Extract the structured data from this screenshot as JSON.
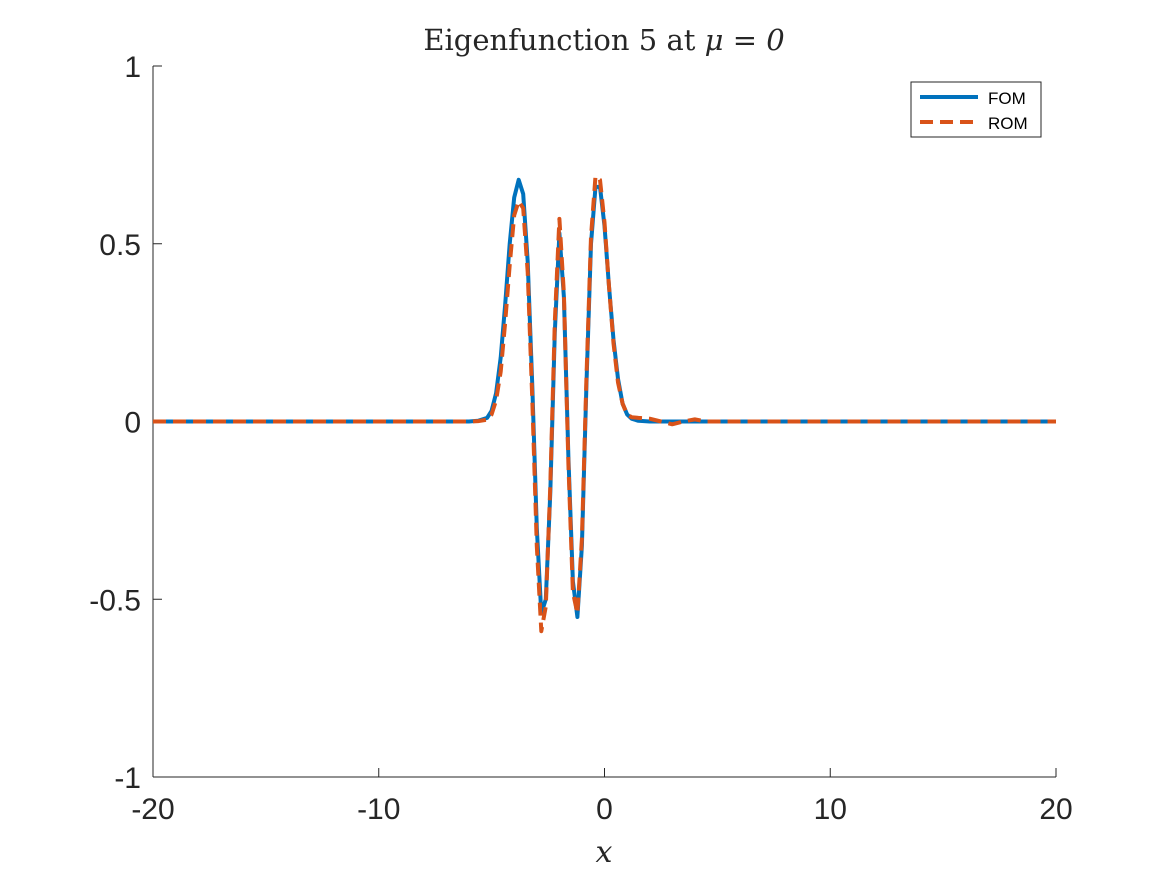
{
  "chart_data": {
    "type": "line",
    "title": "Eigenfunction 5 at μ = 0",
    "title_prefix": "Eigenfunction 5 at ",
    "title_math": "μ = 0",
    "xlabel": "x",
    "ylabel": "",
    "xlim": [
      -20,
      20
    ],
    "ylim": [
      -1,
      1
    ],
    "xticks": [
      -20,
      -10,
      0,
      10,
      20
    ],
    "xtick_labels": [
      "-20",
      "-10",
      "0",
      "10",
      "20"
    ],
    "yticks": [
      -1,
      -0.5,
      0,
      0.5,
      1
    ],
    "ytick_labels": [
      "-1",
      "-0.5",
      "0",
      "0.5",
      "1"
    ],
    "grid": false,
    "legend_position": "top-right",
    "series": [
      {
        "name": "FOM",
        "color": "#0072BD",
        "style": "solid",
        "x": [
          -20,
          -10,
          -6,
          -5.6,
          -5.2,
          -5.0,
          -4.8,
          -4.6,
          -4.4,
          -4.2,
          -4.0,
          -3.8,
          -3.6,
          -3.4,
          -3.2,
          -3.0,
          -2.8,
          -2.6,
          -2.4,
          -2.2,
          -2.0,
          -1.8,
          -1.6,
          -1.4,
          -1.2,
          -1.0,
          -0.8,
          -0.6,
          -0.4,
          -0.2,
          0.0,
          0.2,
          0.4,
          0.6,
          0.8,
          1.0,
          1.2,
          1.5,
          2.0,
          3.0,
          5.0,
          10,
          20
        ],
        "y": [
          0,
          0,
          0,
          0.002,
          0.01,
          0.03,
          0.08,
          0.18,
          0.33,
          0.5,
          0.63,
          0.68,
          0.64,
          0.45,
          0.1,
          -0.3,
          -0.54,
          -0.5,
          -0.2,
          0.25,
          0.53,
          0.35,
          -0.1,
          -0.45,
          -0.55,
          -0.35,
          0.1,
          0.5,
          0.66,
          0.66,
          0.55,
          0.38,
          0.23,
          0.12,
          0.05,
          0.02,
          0.008,
          0.002,
          0,
          0,
          0,
          0,
          0
        ]
      },
      {
        "name": "ROM",
        "color": "#D95319",
        "style": "dashed",
        "x": [
          -20,
          -10,
          -6,
          -5.6,
          -5.2,
          -5.0,
          -4.8,
          -4.6,
          -4.4,
          -4.2,
          -4.0,
          -3.8,
          -3.6,
          -3.4,
          -3.2,
          -3.0,
          -2.8,
          -2.6,
          -2.4,
          -2.2,
          -2.0,
          -1.8,
          -1.6,
          -1.4,
          -1.2,
          -1.0,
          -0.8,
          -0.6,
          -0.4,
          -0.2,
          0.0,
          0.2,
          0.4,
          0.6,
          0.8,
          1.0,
          1.2,
          1.5,
          2.0,
          2.5,
          3.0,
          3.5,
          4.0,
          4.5,
          5.0,
          10,
          20
        ],
        "y": [
          0,
          0,
          0,
          0.001,
          0.005,
          0.02,
          0.06,
          0.14,
          0.28,
          0.44,
          0.58,
          0.62,
          0.6,
          0.42,
          0.06,
          -0.35,
          -0.59,
          -0.52,
          -0.18,
          0.28,
          0.57,
          0.36,
          -0.12,
          -0.48,
          -0.54,
          -0.33,
          0.12,
          0.52,
          0.69,
          0.68,
          0.56,
          0.38,
          0.22,
          0.11,
          0.05,
          0.02,
          0.012,
          0.01,
          0.008,
          0.0,
          -0.008,
          0.0,
          0.006,
          0.0,
          0,
          0,
          0
        ]
      }
    ]
  }
}
